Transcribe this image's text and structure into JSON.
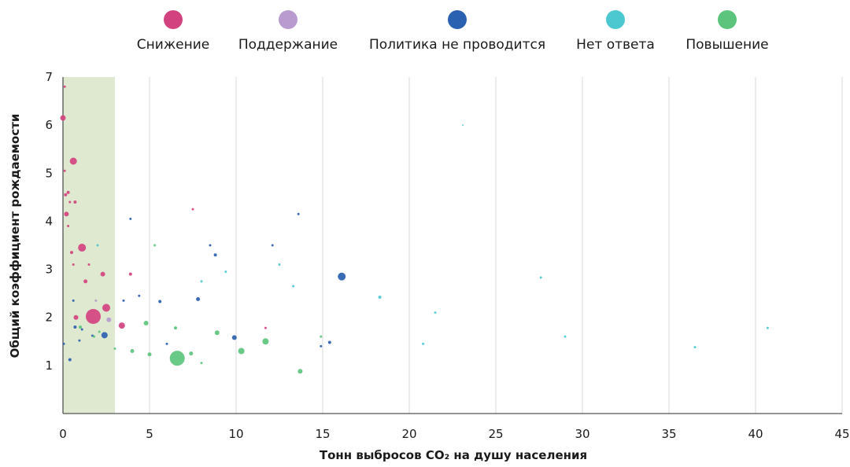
{
  "chart_data": {
    "type": "scatter",
    "title": "",
    "xlabel": "Тонн выбросов CO₂ на душу населения",
    "ylabel": "Общий коэффициент рождаемости",
    "xlim": [
      0,
      45
    ],
    "ylim": [
      0,
      7
    ],
    "x_ticks": [
      "0",
      "5",
      "10",
      "15",
      "20",
      "25",
      "30",
      "35",
      "40",
      "45"
    ],
    "y_ticks": [
      "1",
      "2",
      "3",
      "4",
      "5",
      "6",
      "7"
    ],
    "grid": "vertical",
    "legend_position": "top",
    "highlight_band": {
      "x_from": 0,
      "x_to": 3,
      "color": "#dfe9d0"
    },
    "series": [
      {
        "name": "Снижение",
        "color": "#d2427f",
        "points": [
          {
            "x": 0.0,
            "y": 6.15,
            "size": 3.5
          },
          {
            "x": 0.1,
            "y": 6.8,
            "size": 1.5
          },
          {
            "x": 0.1,
            "y": 5.05,
            "size": 1.5
          },
          {
            "x": 0.15,
            "y": 4.55,
            "size": 2
          },
          {
            "x": 0.2,
            "y": 4.15,
            "size": 3
          },
          {
            "x": 0.3,
            "y": 4.6,
            "size": 2
          },
          {
            "x": 0.3,
            "y": 3.9,
            "size": 1.5
          },
          {
            "x": 0.4,
            "y": 4.4,
            "size": 1.5
          },
          {
            "x": 0.6,
            "y": 5.25,
            "size": 4.5
          },
          {
            "x": 0.7,
            "y": 4.4,
            "size": 2
          },
          {
            "x": 0.5,
            "y": 3.35,
            "size": 2
          },
          {
            "x": 0.6,
            "y": 3.1,
            "size": 1.5
          },
          {
            "x": 0.75,
            "y": 2.0,
            "size": 3
          },
          {
            "x": 1.1,
            "y": 3.45,
            "size": 5
          },
          {
            "x": 1.3,
            "y": 2.75,
            "size": 2.5
          },
          {
            "x": 1.5,
            "y": 3.1,
            "size": 1.5
          },
          {
            "x": 1.75,
            "y": 2.02,
            "size": 9.5
          },
          {
            "x": 2.3,
            "y": 2.9,
            "size": 3
          },
          {
            "x": 2.5,
            "y": 2.2,
            "size": 5
          },
          {
            "x": 3.4,
            "y": 1.83,
            "size": 4
          },
          {
            "x": 3.9,
            "y": 2.9,
            "size": 2
          },
          {
            "x": 7.5,
            "y": 4.25,
            "size": 1.5
          },
          {
            "x": 11.7,
            "y": 1.78,
            "size": 1.5
          }
        ]
      },
      {
        "name": "Поддержание",
        "color": "#b99bd0",
        "points": [
          {
            "x": 2.65,
            "y": 1.95,
            "size": 3
          },
          {
            "x": 1.9,
            "y": 2.35,
            "size": 1.5
          }
        ]
      },
      {
        "name": "Политика не проводится",
        "color": "#2a61b0",
        "points": [
          {
            "x": 0.4,
            "y": 1.12,
            "size": 2
          },
          {
            "x": 0.7,
            "y": 1.8,
            "size": 2
          },
          {
            "x": 1.1,
            "y": 1.75,
            "size": 1.5
          },
          {
            "x": 0.95,
            "y": 1.52,
            "size": 1.5
          },
          {
            "x": 0.6,
            "y": 2.35,
            "size": 1.5
          },
          {
            "x": 0.05,
            "y": 1.45,
            "size": 1.5
          },
          {
            "x": 1.7,
            "y": 1.62,
            "size": 1.5
          },
          {
            "x": 2.4,
            "y": 1.63,
            "size": 4
          },
          {
            "x": 3.5,
            "y": 2.35,
            "size": 1.5
          },
          {
            "x": 3.9,
            "y": 4.05,
            "size": 1.5
          },
          {
            "x": 5.6,
            "y": 2.33,
            "size": 2
          },
          {
            "x": 7.8,
            "y": 2.38,
            "size": 2.5
          },
          {
            "x": 8.5,
            "y": 3.5,
            "size": 1.5
          },
          {
            "x": 8.8,
            "y": 3.3,
            "size": 2
          },
          {
            "x": 9.9,
            "y": 1.58,
            "size": 3
          },
          {
            "x": 12.1,
            "y": 3.5,
            "size": 1.5
          },
          {
            "x": 13.6,
            "y": 4.15,
            "size": 1.5
          },
          {
            "x": 14.9,
            "y": 1.4,
            "size": 1.5
          },
          {
            "x": 15.4,
            "y": 1.48,
            "size": 2
          },
          {
            "x": 16.1,
            "y": 2.85,
            "size": 5
          },
          {
            "x": 4.4,
            "y": 2.45,
            "size": 1.5
          },
          {
            "x": 6.0,
            "y": 1.45,
            "size": 1.5
          }
        ]
      },
      {
        "name": "Нет ответа",
        "color": "#4cc9d0",
        "points": [
          {
            "x": 2.0,
            "y": 3.5,
            "size": 1.5
          },
          {
            "x": 12.5,
            "y": 3.1,
            "size": 1.5
          },
          {
            "x": 13.3,
            "y": 2.65,
            "size": 1.5
          },
          {
            "x": 18.3,
            "y": 2.42,
            "size": 2
          },
          {
            "x": 20.8,
            "y": 1.45,
            "size": 1.5
          },
          {
            "x": 21.5,
            "y": 2.1,
            "size": 1.5
          },
          {
            "x": 23.1,
            "y": 6.0,
            "size": 1
          },
          {
            "x": 27.6,
            "y": 2.83,
            "size": 1.5
          },
          {
            "x": 29.0,
            "y": 1.6,
            "size": 1.5
          },
          {
            "x": 36.5,
            "y": 1.38,
            "size": 1.5
          },
          {
            "x": 40.7,
            "y": 1.78,
            "size": 1.5
          },
          {
            "x": 9.4,
            "y": 2.95,
            "size": 1.5
          },
          {
            "x": 8.0,
            "y": 2.75,
            "size": 1.5
          }
        ]
      },
      {
        "name": "Повышение",
        "color": "#5cc47c",
        "points": [
          {
            "x": 1.0,
            "y": 1.8,
            "size": 2
          },
          {
            "x": 1.8,
            "y": 1.6,
            "size": 1.5
          },
          {
            "x": 3.0,
            "y": 1.35,
            "size": 1.5
          },
          {
            "x": 4.0,
            "y": 1.3,
            "size": 2.5
          },
          {
            "x": 4.8,
            "y": 1.88,
            "size": 3
          },
          {
            "x": 5.0,
            "y": 1.23,
            "size": 2.5
          },
          {
            "x": 6.6,
            "y": 1.15,
            "size": 9.5
          },
          {
            "x": 6.5,
            "y": 1.78,
            "size": 2
          },
          {
            "x": 7.4,
            "y": 1.25,
            "size": 2.5
          },
          {
            "x": 8.0,
            "y": 1.05,
            "size": 1.5
          },
          {
            "x": 8.9,
            "y": 1.68,
            "size": 3
          },
          {
            "x": 10.3,
            "y": 1.3,
            "size": 4
          },
          {
            "x": 11.7,
            "y": 1.5,
            "size": 4
          },
          {
            "x": 13.7,
            "y": 0.88,
            "size": 3
          },
          {
            "x": 5.3,
            "y": 3.5,
            "size": 1.5
          },
          {
            "x": 14.9,
            "y": 1.6,
            "size": 1.5
          },
          {
            "x": 2.1,
            "y": 1.7,
            "size": 1.5
          }
        ]
      }
    ]
  }
}
